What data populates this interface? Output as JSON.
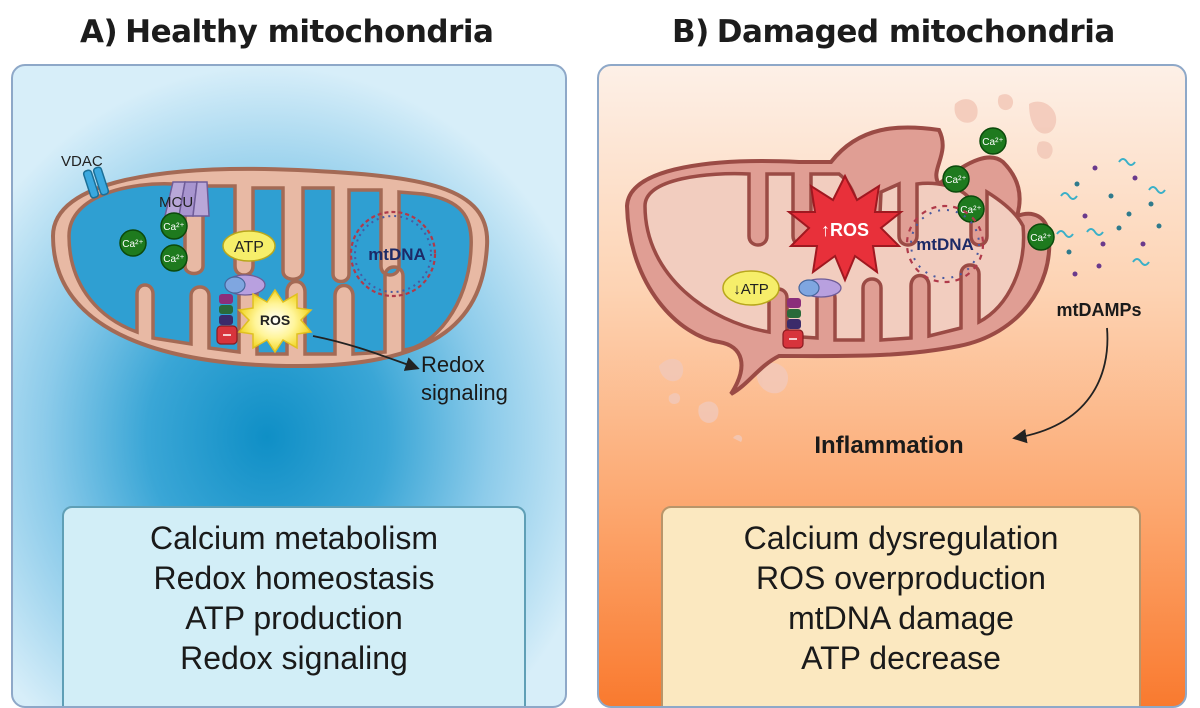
{
  "panel_a": {
    "title_label": "A)",
    "title_text": "Healthy mitochondria",
    "labels": {
      "vdac": "VDAC",
      "mcu": "MCU",
      "calcium_ion": "Ca²⁺",
      "atp": "ATP",
      "ros": "ROS",
      "mtdna": "mtDNA",
      "redox_line1": "Redox",
      "redox_line2": "signaling"
    },
    "summary": [
      "Calcium metabolism",
      "Redox homeostasis",
      "ATP production",
      "Redox signaling"
    ]
  },
  "panel_b": {
    "title_label": "B)",
    "title_text": "Damaged mitochondria",
    "labels": {
      "calcium_ion": "Ca²⁺",
      "ros_up": "↑ROS",
      "atp_down": "↓ATP",
      "mtdna": "mtDNA",
      "mtdamps": "mtDAMPs",
      "inflammation": "Inflammation"
    },
    "summary": [
      "Calcium dysregulation",
      "ROS overproduction",
      "mtDNA damage",
      "ATP decrease"
    ]
  },
  "colors": {
    "healthy_bg": "#2ea0d4",
    "damaged_bg": "#fba06a",
    "membrane_healthy": "#e8b9a4",
    "membrane_damaged": "#e09e94",
    "calcium_green": "#1e7a1e",
    "atp_yellow": "#f6ee6a",
    "ros_red": "#e8303a"
  }
}
